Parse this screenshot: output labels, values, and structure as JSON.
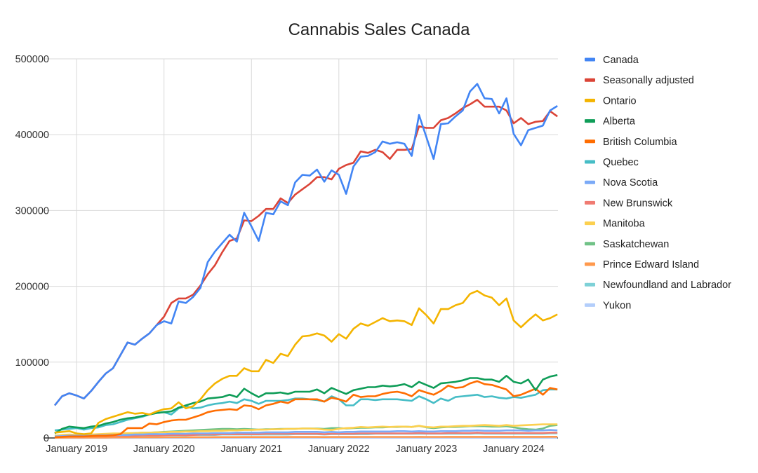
{
  "chart_data": {
    "type": "line",
    "title": "Cannabis Sales Canada",
    "xlabel": "",
    "ylabel": "",
    "x_start": "2018-10",
    "x_frequency": "monthly",
    "x_end": "2024-07",
    "x_tick_labels": [
      "January 2019",
      "January 2020",
      "January 2021",
      "January 2022",
      "January 2023",
      "January 2024"
    ],
    "y_tick_labels": [
      "0",
      "100000",
      "200000",
      "300000",
      "400000",
      "500000"
    ],
    "ylim": [
      0,
      500000
    ],
    "grid": true,
    "legend_position": "right",
    "series": [
      {
        "name": "Canada",
        "color": "#4285F4",
        "values": [
          43000,
          55000,
          59000,
          56000,
          52000,
          62000,
          74000,
          85000,
          92000,
          109000,
          126000,
          123000,
          131000,
          138000,
          149000,
          154000,
          151000,
          180000,
          178000,
          186000,
          198000,
          232000,
          246000,
          257000,
          268000,
          259000,
          297000,
          279000,
          260000,
          297000,
          295000,
          312000,
          307000,
          337000,
          347000,
          346000,
          354000,
          338000,
          353000,
          347000,
          322000,
          358000,
          371000,
          372000,
          377000,
          391000,
          388000,
          390000,
          388000,
          372000,
          426000,
          397000,
          368000,
          414000,
          415000,
          424000,
          432000,
          457000,
          467000,
          448000,
          447000,
          428000,
          448000,
          401000,
          386000,
          406000,
          409000,
          412000,
          432000,
          438000
        ]
      },
      {
        "name": "Seasonally adjusted",
        "color": "#DB4437",
        "values": [
          43000,
          55000,
          59000,
          56000,
          52000,
          62000,
          74000,
          85000,
          92000,
          109000,
          126000,
          123000,
          131000,
          138000,
          149000,
          160000,
          178000,
          184000,
          184000,
          189000,
          201000,
          216000,
          228000,
          245000,
          260000,
          263000,
          287000,
          286000,
          293000,
          302000,
          302000,
          316000,
          310000,
          321000,
          328000,
          335000,
          344000,
          344000,
          341000,
          355000,
          360000,
          363000,
          378000,
          376000,
          380000,
          377000,
          368000,
          380000,
          380000,
          381000,
          411000,
          409000,
          409000,
          419000,
          422000,
          428000,
          435000,
          440000,
          446000,
          437000,
          437000,
          437000,
          432000,
          415000,
          422000,
          414000,
          417000,
          418000,
          431000,
          424000
        ]
      },
      {
        "name": "Ontario",
        "color": "#F4B400",
        "values": [
          7000,
          8000,
          9000,
          6000,
          5000,
          6000,
          20000,
          25000,
          28000,
          31000,
          34000,
          32000,
          33000,
          31000,
          35000,
          38000,
          39000,
          47000,
          39000,
          42000,
          51000,
          63000,
          72000,
          78000,
          82000,
          82000,
          92000,
          88000,
          88000,
          103000,
          99000,
          111000,
          108000,
          123000,
          134000,
          135000,
          138000,
          135000,
          127000,
          137000,
          131000,
          144000,
          151000,
          148000,
          153000,
          158000,
          154000,
          155000,
          154000,
          149000,
          171000,
          162000,
          151000,
          170000,
          170000,
          175000,
          178000,
          190000,
          194000,
          188000,
          185000,
          175000,
          184000,
          155000,
          146000,
          155000,
          163000,
          155000,
          158000,
          163000
        ]
      },
      {
        "name": "Alberta",
        "color": "#0F9D58",
        "values": [
          6000,
          12000,
          15000,
          14000,
          13000,
          15000,
          16000,
          19000,
          21000,
          24000,
          26000,
          27000,
          29000,
          31000,
          33000,
          34000,
          35000,
          40000,
          43000,
          46000,
          48000,
          52000,
          53000,
          54000,
          57000,
          54000,
          65000,
          59000,
          54000,
          59000,
          59000,
          60000,
          58000,
          61000,
          61000,
          61000,
          64000,
          59000,
          66000,
          62000,
          58000,
          63000,
          65000,
          67000,
          67000,
          69000,
          68000,
          69000,
          71000,
          67000,
          74000,
          70000,
          66000,
          72000,
          73000,
          74000,
          76000,
          79000,
          79000,
          77000,
          77000,
          74000,
          82000,
          74000,
          72000,
          77000,
          63000,
          77000,
          81000,
          83000
        ]
      },
      {
        "name": "British Columbia",
        "color": "#FF6D01",
        "values": [
          1000,
          1500,
          2000,
          2000,
          2000,
          2500,
          3000,
          3000,
          3500,
          5000,
          13000,
          13000,
          13000,
          19000,
          18000,
          21000,
          23000,
          24000,
          24000,
          27000,
          30000,
          34000,
          36000,
          37000,
          38000,
          37000,
          43000,
          42000,
          38000,
          43000,
          45000,
          48000,
          46000,
          51000,
          51000,
          51000,
          51000,
          48000,
          53000,
          51000,
          48000,
          57000,
          54000,
          55000,
          55000,
          58000,
          60000,
          61000,
          59000,
          55000,
          63000,
          60000,
          57000,
          62000,
          69000,
          66000,
          67000,
          72000,
          75000,
          71000,
          70000,
          67000,
          64000,
          55000,
          57000,
          61000,
          65000,
          57000,
          66000,
          64000
        ]
      },
      {
        "name": "Quebec",
        "color": "#46BDC6",
        "values": [
          10000,
          11000,
          12000,
          13000,
          11000,
          13000,
          14000,
          17000,
          18000,
          21000,
          24000,
          26000,
          28000,
          31000,
          33000,
          34000,
          31000,
          39000,
          42000,
          39000,
          40000,
          43000,
          45000,
          46000,
          48000,
          46000,
          51000,
          49000,
          45000,
          49000,
          49000,
          49000,
          50000,
          52000,
          52000,
          51000,
          50000,
          48000,
          55000,
          51000,
          43000,
          43000,
          51000,
          51000,
          50000,
          51000,
          51000,
          51000,
          50000,
          49000,
          55000,
          51000,
          46000,
          52000,
          49000,
          54000,
          55000,
          56000,
          57000,
          54000,
          55000,
          53000,
          52000,
          54000,
          53000,
          55000,
          57000,
          63000,
          64000,
          64000
        ]
      },
      {
        "name": "Nova Scotia",
        "color": "#7BAAF7",
        "values": [
          2000,
          2500,
          3000,
          3000,
          3000,
          3000,
          3500,
          3500,
          4000,
          4000,
          4000,
          4500,
          4500,
          5000,
          5000,
          5000,
          5500,
          5500,
          5500,
          6000,
          6000,
          6000,
          6500,
          6500,
          6500,
          7000,
          7000,
          7000,
          7000,
          7500,
          7500,
          7500,
          7500,
          8000,
          8000,
          8000,
          8000,
          7500,
          8000,
          7500,
          8000,
          8000,
          8500,
          8500,
          8500,
          8500,
          8500,
          9000,
          9000,
          8500,
          9000,
          8500,
          8500,
          9000,
          9000,
          9000,
          9500,
          9500,
          10000,
          9500,
          9500,
          9500,
          10000,
          10000,
          10000,
          9500,
          10000,
          10000,
          10500,
          10000
        ]
      },
      {
        "name": "New Brunswick",
        "color": "#F07B72",
        "values": [
          1500,
          2000,
          2000,
          2000,
          2000,
          2500,
          2500,
          2500,
          3000,
          3000,
          3000,
          3000,
          3500,
          3500,
          3500,
          3500,
          4000,
          4000,
          4000,
          4000,
          4500,
          4500,
          4500,
          5000,
          5000,
          5000,
          5000,
          5000,
          5000,
          5500,
          5500,
          5500,
          5500,
          5500,
          5500,
          5500,
          5500,
          5000,
          5500,
          5500,
          5500,
          5500,
          6000,
          6000,
          6000,
          6000,
          6000,
          6000,
          6000,
          6000,
          6500,
          6000,
          6000,
          6000,
          6500,
          6500,
          6500,
          6500,
          7000,
          6500,
          6500,
          6500,
          6500,
          6500,
          6500,
          6500,
          6500,
          6500,
          7000,
          7000
        ]
      },
      {
        "name": "Manitoba",
        "color": "#FCD04F",
        "values": [
          3000,
          4000,
          4500,
          4000,
          4000,
          4500,
          5000,
          5500,
          6000,
          6000,
          6500,
          6500,
          7000,
          7000,
          7500,
          7500,
          8000,
          8000,
          8500,
          8500,
          9000,
          9000,
          9500,
          9500,
          10000,
          10000,
          10500,
          10500,
          11000,
          11000,
          11500,
          11500,
          12000,
          12000,
          12500,
          12500,
          12000,
          11000,
          10500,
          12000,
          13000,
          13500,
          14500,
          14000,
          14500,
          15000,
          14500,
          15000,
          15000,
          14500,
          16000,
          14500,
          14000,
          15000,
          15000,
          15500,
          16000,
          16000,
          16500,
          17000,
          16500,
          16000,
          17000,
          16000,
          16500,
          17000,
          17500,
          18000,
          18000,
          18000
        ]
      },
      {
        "name": "Saskatchewan",
        "color": "#71C287",
        "values": [
          2000,
          2500,
          3000,
          3000,
          3000,
          3500,
          4000,
          4500,
          5000,
          5500,
          6000,
          6500,
          7000,
          7000,
          7500,
          8000,
          8500,
          9000,
          9500,
          10000,
          10500,
          11000,
          11500,
          12000,
          12000,
          11500,
          12000,
          11500,
          11000,
          11500,
          11500,
          12000,
          12000,
          12000,
          12500,
          12500,
          12500,
          12000,
          13000,
          13000,
          12500,
          13000,
          13500,
          13500,
          14000,
          14000,
          14500,
          14500,
          15000,
          14500,
          16000,
          14000,
          13000,
          14000,
          14500,
          14500,
          15000,
          15500,
          15500,
          15500,
          15000,
          15000,
          15500,
          14000,
          12500,
          11500,
          11000,
          12500,
          16000,
          17000
        ]
      },
      {
        "name": "Prince Edward Island",
        "color": "#FF994D",
        "values": [
          300,
          400,
          500,
          500,
          500,
          500,
          600,
          600,
          700,
          700,
          700,
          800,
          800,
          800,
          800,
          900,
          900,
          900,
          1000,
          1000,
          1000,
          1000,
          1100,
          1100,
          1100,
          1100,
          1200,
          1200,
          1200,
          1200,
          1200,
          1200,
          1300,
          1300,
          1300,
          1300,
          1300,
          1200,
          1300,
          1300,
          1300,
          1300,
          1400,
          1400,
          1400,
          1400,
          1400,
          1400,
          1400,
          1400,
          1500,
          1400,
          1400,
          1400,
          1500,
          1500,
          1500,
          1500,
          1500,
          1500,
          1500,
          1500,
          1500,
          1500,
          1500,
          1500,
          1500,
          1500,
          1600,
          1600
        ]
      },
      {
        "name": "Newfoundland and Labrador",
        "color": "#7ED1D7",
        "values": [
          1000,
          1500,
          1500,
          1500,
          1500,
          2000,
          2000,
          2000,
          2500,
          2500,
          2500,
          3000,
          3000,
          3000,
          3000,
          3500,
          3500,
          3500,
          3500,
          4000,
          4000,
          4000,
          4000,
          4500,
          4500,
          4500,
          4500,
          4500,
          4500,
          4500,
          4500,
          4500,
          4500,
          5000,
          5000,
          5000,
          5000,
          4500,
          5000,
          5000,
          5000,
          5000,
          5000,
          5000,
          5500,
          5500,
          5500,
          5500,
          5500,
          5500,
          5500,
          5500,
          5500,
          5500,
          5500,
          5500,
          5500,
          5500,
          6000,
          5500,
          5500,
          5500,
          5500,
          5500,
          5500,
          5500,
          5500,
          5500,
          6000,
          6000
        ]
      },
      {
        "name": "Yukon",
        "color": "#B3CEFB",
        "values": [
          100,
          100,
          100,
          100,
          100,
          150,
          150,
          150,
          150,
          150,
          150,
          150,
          200,
          200,
          200,
          200,
          200,
          200,
          200,
          200,
          200,
          200,
          200,
          250,
          250,
          250,
          250,
          250,
          250,
          250,
          250,
          250,
          250,
          250,
          300,
          300,
          300,
          300,
          300,
          300,
          300,
          300,
          300,
          300,
          300,
          300,
          300,
          300,
          300,
          300,
          300,
          300,
          300,
          300,
          300,
          300,
          300,
          300,
          300,
          300,
          300,
          300,
          300,
          300,
          300,
          300,
          300,
          300,
          300,
          300
        ]
      }
    ]
  }
}
